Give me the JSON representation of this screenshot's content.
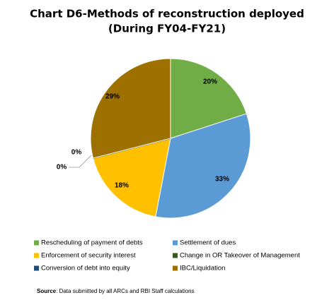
{
  "chart_data": {
    "type": "pie",
    "title": "Chart D6-Methods of reconstruction deployed",
    "subtitle": "(During FY04-FY21)",
    "categories": [
      "Rescheduling of payment of debts",
      "Settlement of dues",
      "Enforcement of security interest",
      "Change in OR Takeover of Management",
      "Conversion of debt into equity",
      "IBC/Liquidation"
    ],
    "values": [
      20,
      33,
      18,
      0,
      0,
      29
    ],
    "value_labels": [
      "20%",
      "33%",
      "18%",
      "0%",
      "0%",
      "29%"
    ],
    "colors": [
      "#70ad47",
      "#5b9bd5",
      "#ffc000",
      "#375623",
      "#1f4e79",
      "#9e7000"
    ],
    "source_label": "Source",
    "source": ": Data submitted by all ARCs and RBI Staff calculations"
  }
}
